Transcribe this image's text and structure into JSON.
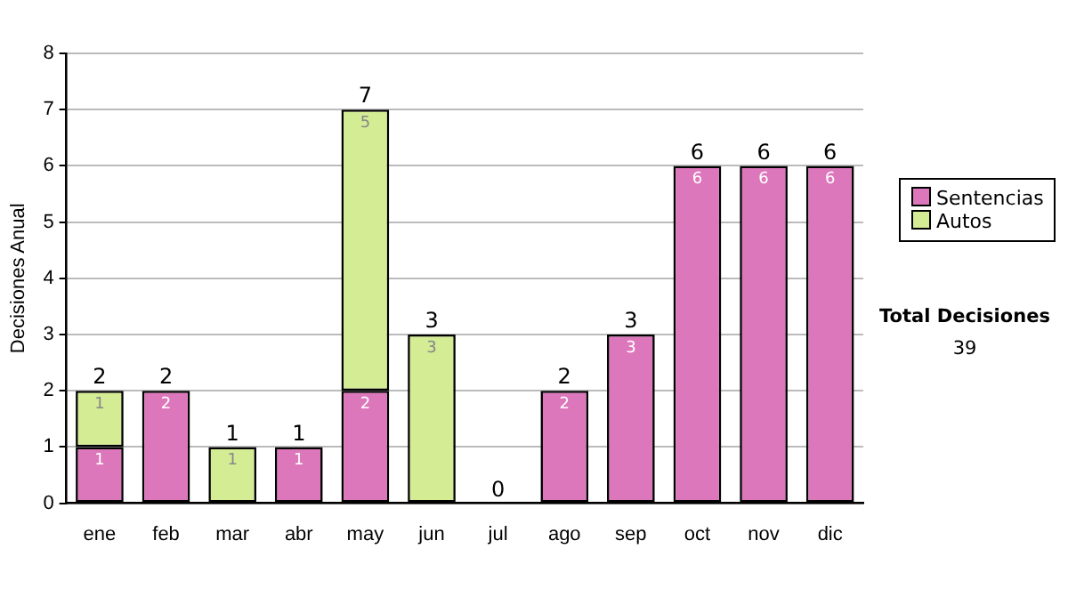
{
  "chart_data": {
    "type": "bar",
    "stacked": true,
    "ylabel": "Decisiones Anual",
    "categories": [
      "ene",
      "feb",
      "mar",
      "abr",
      "may",
      "jun",
      "jul",
      "ago",
      "sep",
      "oct",
      "nov",
      "dic"
    ],
    "series": [
      {
        "name": "Sentencias",
        "color": "#dd77bb",
        "values": [
          1,
          2,
          0,
          1,
          2,
          0,
          0,
          2,
          3,
          6,
          6,
          6
        ],
        "value_labels": [
          "1",
          "2",
          null,
          "1",
          "2",
          null,
          null,
          "2",
          "3",
          "6",
          "6",
          "6"
        ]
      },
      {
        "name": "Autos",
        "color": "#d4ec94",
        "values": [
          1,
          0,
          1,
          0,
          5,
          3,
          0,
          0,
          0,
          0,
          0,
          0
        ],
        "value_labels": [
          "1",
          null,
          "1",
          null,
          "5",
          "3",
          null,
          null,
          null,
          null,
          null,
          null
        ]
      }
    ],
    "totals": [
      "2",
      "2",
      "1",
      "1",
      "7",
      "3",
      "0",
      "2",
      "3",
      "6",
      "6",
      "6"
    ],
    "ylim": [
      0,
      8
    ],
    "yticks": [
      0,
      1,
      2,
      3,
      4,
      5,
      6,
      7,
      8
    ],
    "grid": "y",
    "legend": "right",
    "annotations": [
      "Total Decisiones",
      "39"
    ]
  }
}
